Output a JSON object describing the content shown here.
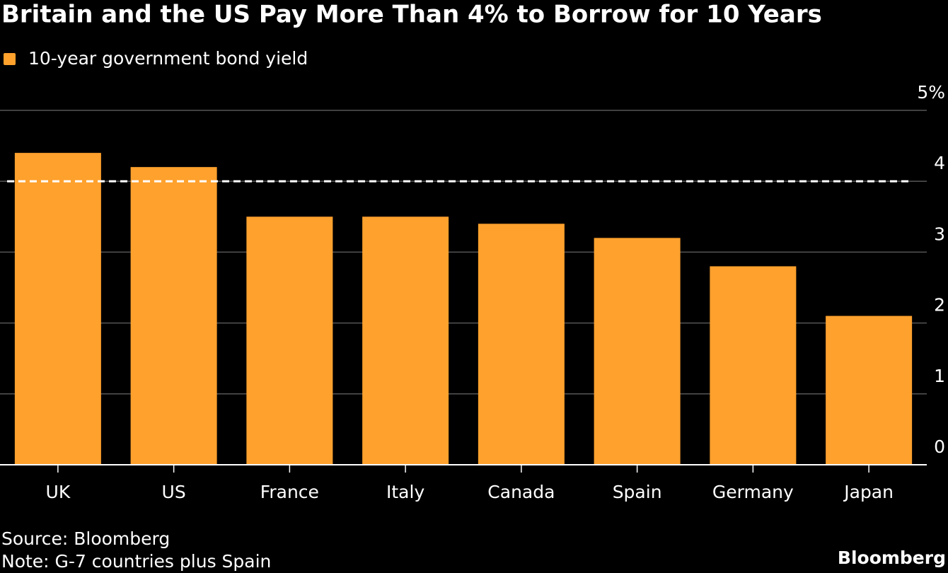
{
  "chart_data": {
    "type": "bar",
    "title": "Britain and the US Pay More Than 4% to Borrow for 10 Years",
    "categories": [
      "UK",
      "US",
      "France",
      "Italy",
      "Canada",
      "Spain",
      "Germany",
      "Japan"
    ],
    "series": [
      {
        "name": "10-year government bond yield",
        "color": "#ffa12d",
        "values": [
          4.4,
          4.2,
          3.5,
          3.5,
          3.4,
          3.2,
          2.8,
          2.1
        ]
      }
    ],
    "ylim": [
      0,
      5
    ],
    "yticks": [
      0,
      1,
      2,
      3,
      4,
      {
        "value": 5,
        "label": "5%"
      }
    ],
    "reference_line": 4,
    "grid": true,
    "source": "Source: Bloomberg",
    "note": "Note: G-7 countries plus Spain",
    "brand": "Bloomberg"
  }
}
